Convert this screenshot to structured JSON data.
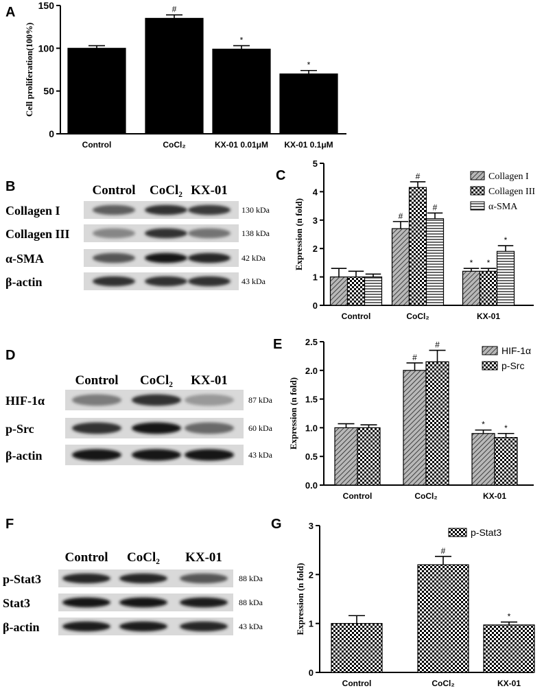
{
  "panel_labels": {
    "A": "A",
    "B": "B",
    "C": "C",
    "D": "D",
    "E": "E",
    "F": "F",
    "G": "G"
  },
  "colors": {
    "ink": "#000000",
    "paper": "#ffffff",
    "bar_gray": "#b0b0b0"
  },
  "chart_data": [
    {
      "id": "A",
      "type": "bar",
      "ylabel": "Cell proliferation(100%)",
      "ylim": [
        0,
        150
      ],
      "yticks": [
        0,
        50,
        100,
        150
      ],
      "categories": [
        "Control",
        "CoCl₂",
        "KX-01 0.01μM",
        "KX-01 0.1μM"
      ],
      "series": [
        {
          "values": [
            100,
            135,
            99,
            70
          ],
          "errors": [
            3,
            4,
            4,
            4
          ],
          "marks": [
            "",
            "#",
            "*",
            "*"
          ],
          "pattern": "solid"
        }
      ]
    },
    {
      "id": "C",
      "type": "bar",
      "ylabel": "Expression (n fold)",
      "ylim": [
        0,
        5
      ],
      "yticks": [
        0,
        1,
        2,
        3,
        4,
        5
      ],
      "categories": [
        "Control",
        "CoCl₂",
        "KX-01"
      ],
      "legend_position": "top-right",
      "series": [
        {
          "name": "Collagen I",
          "values": [
            1.0,
            2.7,
            1.2
          ],
          "errors": [
            0.3,
            0.25,
            0.1
          ],
          "marks": [
            "",
            "#",
            "*"
          ],
          "pattern": "diag"
        },
        {
          "name": "Collagen III",
          "values": [
            1.0,
            4.15,
            1.2
          ],
          "errors": [
            0.2,
            0.2,
            0.1
          ],
          "marks": [
            "",
            "#",
            "*"
          ],
          "pattern": "check"
        },
        {
          "name": "α-SMA",
          "values": [
            1.0,
            3.05,
            1.9
          ],
          "errors": [
            0.1,
            0.2,
            0.2
          ],
          "marks": [
            "",
            "#",
            "*"
          ],
          "pattern": "hlines"
        }
      ]
    },
    {
      "id": "E",
      "type": "bar",
      "ylabel": "Expression (n fold)",
      "ylim": [
        0,
        2.5
      ],
      "yticks": [
        "0.0",
        "0.5",
        "1.0",
        "1.5",
        "2.0",
        "2.5"
      ],
      "categories": [
        "Control",
        "CoCl₂",
        "KX-01"
      ],
      "legend_position": "top-right",
      "series": [
        {
          "name": "HIF-1α",
          "values": [
            1.0,
            2.0,
            0.9
          ],
          "errors": [
            0.07,
            0.13,
            0.06
          ],
          "marks": [
            "",
            "#",
            "*"
          ],
          "pattern": "diag"
        },
        {
          "name": "p-Src",
          "values": [
            1.0,
            2.15,
            0.83
          ],
          "errors": [
            0.05,
            0.2,
            0.07
          ],
          "marks": [
            "",
            "#",
            "*"
          ],
          "pattern": "check"
        }
      ]
    },
    {
      "id": "G",
      "type": "bar",
      "ylabel": "Expression (n fold)",
      "ylim": [
        0,
        3
      ],
      "yticks": [
        0,
        1,
        2,
        3
      ],
      "categories": [
        "Control",
        "CoCl₂",
        "KX-01"
      ],
      "legend_position": "top-right",
      "series": [
        {
          "name": "p-Stat3",
          "values": [
            1.0,
            2.2,
            0.97
          ],
          "errors": [
            0.16,
            0.17,
            0.06
          ],
          "marks": [
            "",
            "#",
            "*"
          ],
          "pattern": "check"
        }
      ]
    }
  ],
  "blots": [
    {
      "id": "B",
      "columns": [
        "Control",
        "CoCl₂",
        "KX-01"
      ],
      "rows": [
        {
          "label": "Collagen I",
          "kda": "130 kDa",
          "intensity": [
            0.55,
            0.8,
            0.75
          ]
        },
        {
          "label": "Collagen III",
          "kda": "138 kDa",
          "intensity": [
            0.35,
            0.8,
            0.45
          ]
        },
        {
          "label": "α-SMA",
          "kda": "42 kDa",
          "intensity": [
            0.6,
            0.95,
            0.85
          ]
        },
        {
          "label": "β-actin",
          "kda": "43 kDa",
          "intensity": [
            0.8,
            0.8,
            0.8
          ]
        }
      ]
    },
    {
      "id": "D",
      "columns": [
        "Control",
        "CoCl₂",
        "KX-01"
      ],
      "rows": [
        {
          "label": "HIF-1α",
          "kda": "87 kDa",
          "intensity": [
            0.4,
            0.8,
            0.25
          ]
        },
        {
          "label": "p-Src",
          "kda": "60 kDa",
          "intensity": [
            0.8,
            0.95,
            0.5
          ]
        },
        {
          "label": "β-actin",
          "kda": "43 kDa",
          "intensity": [
            0.95,
            0.95,
            0.95
          ]
        }
      ]
    },
    {
      "id": "F",
      "columns": [
        "Control",
        "CoCl₂",
        "KX-01"
      ],
      "rows": [
        {
          "label": "p-Stat3",
          "kda": "88 kDa",
          "intensity": [
            0.85,
            0.85,
            0.6
          ]
        },
        {
          "label": "Stat3",
          "kda": "88 kDa",
          "intensity": [
            0.95,
            0.95,
            0.9
          ]
        },
        {
          "label": "β-actin",
          "kda": "43 kDa",
          "intensity": [
            0.9,
            0.9,
            0.85
          ]
        }
      ]
    }
  ]
}
